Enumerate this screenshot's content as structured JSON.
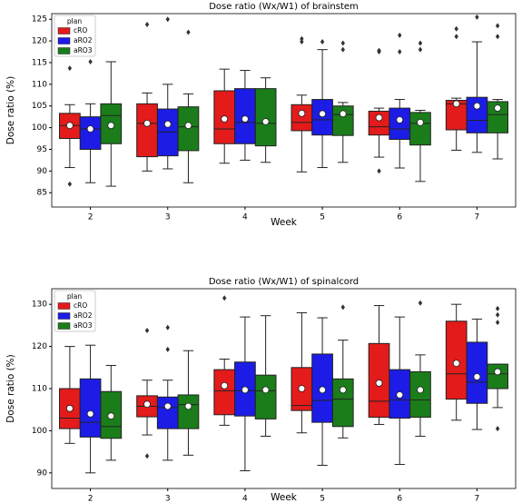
{
  "chart_data": [
    {
      "type": "box",
      "title": "Dose ratio (Wx/W1) of brainstem",
      "x_label": "Week",
      "y_label": "Dose ratio (%)",
      "categories": [
        "2",
        "3",
        "4",
        "5",
        "6",
        "7"
      ],
      "legend_title": "plan",
      "legend_position": "upper left",
      "ylim": [
        81.7,
        126.3
      ],
      "yticks": [
        85,
        90,
        95,
        100,
        105,
        110,
        115,
        120,
        125
      ],
      "series": [
        {
          "name": "cRO",
          "color": "#e31b1b",
          "values": [
            {
              "whislo": 90.8,
              "q1": 97.5,
              "med": 100.5,
              "q3": 103.3,
              "whishi": 105.3,
              "mean": 100.5,
              "fliers": [
                113.7,
                87
              ]
            },
            {
              "whislo": 90,
              "q1": 93.3,
              "med": 101,
              "q3": 105.5,
              "whishi": 108,
              "mean": 101,
              "fliers": [
                123.8
              ]
            },
            {
              "whislo": 91.8,
              "q1": 96.3,
              "med": 99.7,
              "q3": 108.5,
              "whishi": 113.5,
              "mean": 102,
              "fliers": []
            },
            {
              "whislo": 89.8,
              "q1": 99.3,
              "med": 101.2,
              "q3": 105.3,
              "whishi": 107.5,
              "mean": 103.3,
              "fliers": [
                120.5,
                119.8
              ]
            },
            {
              "whislo": 93.2,
              "q1": 98.3,
              "med": 100.2,
              "q3": 103.8,
              "whishi": 104.5,
              "mean": 102.3,
              "fliers": [
                117.8,
                117.5,
                90
              ]
            },
            {
              "whislo": 94.8,
              "q1": 99.5,
              "med": 105.5,
              "q3": 106.3,
              "whishi": 106.8,
              "mean": 105.5,
              "fliers": [
                122.8,
                121
              ]
            }
          ]
        },
        {
          "name": "aRO2",
          "color": "#1c1ce6",
          "values": [
            {
              "whislo": 87.3,
              "q1": 95,
              "med": 99.7,
              "q3": 102.5,
              "whishi": 105.5,
              "mean": 99.7,
              "fliers": [
                115.2
              ]
            },
            {
              "whislo": 90.5,
              "q1": 93.5,
              "med": 99,
              "q3": 104.3,
              "whishi": 110,
              "mean": 100.8,
              "fliers": [
                125
              ]
            },
            {
              "whislo": 92.5,
              "q1": 96.3,
              "med": 101.2,
              "q3": 109,
              "whishi": 113.2,
              "mean": 102,
              "fliers": []
            },
            {
              "whislo": 90.8,
              "q1": 98.3,
              "med": 101.8,
              "q3": 106.5,
              "whishi": 118,
              "mean": 103.2,
              "fliers": [
                119.8
              ]
            },
            {
              "whislo": 90.7,
              "q1": 97.3,
              "med": 99.7,
              "q3": 104.5,
              "whishi": 106.5,
              "mean": 101.8,
              "fliers": [
                121.3,
                117.5
              ]
            },
            {
              "whislo": 94.3,
              "q1": 98.8,
              "med": 101.7,
              "q3": 107,
              "whishi": 119.8,
              "mean": 105,
              "fliers": [
                125.5
              ]
            }
          ]
        },
        {
          "name": "aRO3",
          "color": "#1a7d1a",
          "values": [
            {
              "whislo": 86.5,
              "q1": 96.3,
              "med": 102.8,
              "q3": 105.5,
              "whishi": 115.2,
              "mean": 100.5,
              "fliers": []
            },
            {
              "whislo": 87.3,
              "q1": 94.7,
              "med": 100.2,
              "q3": 104.8,
              "whishi": 107.8,
              "mean": 100.5,
              "fliers": [
                122
              ]
            },
            {
              "whislo": 92,
              "q1": 95.8,
              "med": 101,
              "q3": 109,
              "whishi": 111.5,
              "mean": 101.4,
              "fliers": []
            },
            {
              "whislo": 92,
              "q1": 98.2,
              "med": 103,
              "q3": 105,
              "whishi": 105.8,
              "mean": 103.2,
              "fliers": [
                119.5,
                118
              ]
            },
            {
              "whislo": 87.6,
              "q1": 96,
              "med": 101,
              "q3": 103.5,
              "whishi": 104,
              "mean": 101.2,
              "fliers": [
                119.5,
                118
              ]
            },
            {
              "whislo": 92.8,
              "q1": 98.8,
              "med": 103,
              "q3": 106,
              "whishi": 106.5,
              "mean": 104.5,
              "fliers": [
                123.5,
                121
              ]
            }
          ]
        }
      ]
    },
    {
      "type": "box",
      "title": "Dose ratio (Wx/W1) of spinalcord",
      "x_label": "Week",
      "y_label": "Dose ratio (%)",
      "categories": [
        "2",
        "3",
        "4",
        "5",
        "6",
        "7"
      ],
      "legend_title": "plan",
      "legend_position": "upper left",
      "ylim": [
        86.3,
        133.7
      ],
      "yticks": [
        90,
        100,
        110,
        120,
        130
      ],
      "series": [
        {
          "name": "cRO",
          "color": "#e31b1b",
          "values": [
            {
              "whislo": 97,
              "q1": 100.5,
              "med": 103,
              "q3": 110,
              "whishi": 120,
              "mean": 105.3,
              "fliers": []
            },
            {
              "whislo": 99,
              "q1": 103.3,
              "med": 105.8,
              "q3": 108.3,
              "whishi": 112,
              "mean": 106.3,
              "fliers": [
                123.8,
                94
              ]
            },
            {
              "whislo": 101.3,
              "q1": 103.8,
              "med": 109.5,
              "q3": 114.5,
              "whishi": 117,
              "mean": 110.7,
              "fliers": [
                131.5
              ]
            },
            {
              "whislo": 99.5,
              "q1": 104.8,
              "med": 106,
              "q3": 115,
              "whishi": 128,
              "mean": 110,
              "fliers": []
            },
            {
              "whislo": 101.5,
              "q1": 103.2,
              "med": 107,
              "q3": 120.7,
              "whishi": 129.7,
              "mean": 111.3,
              "fliers": []
            },
            {
              "whislo": 102.5,
              "q1": 107.5,
              "med": 113.5,
              "q3": 126,
              "whishi": 130,
              "mean": 116,
              "fliers": []
            }
          ]
        },
        {
          "name": "aRO2",
          "color": "#1c1ce6",
          "values": [
            {
              "whislo": 90,
              "q1": 98.5,
              "med": 102,
              "q3": 112.3,
              "whishi": 120.3,
              "mean": 104,
              "fliers": []
            },
            {
              "whislo": 93,
              "q1": 100.5,
              "med": 105.5,
              "q3": 108,
              "whishi": 112,
              "mean": 105.8,
              "fliers": [
                124.5,
                119.3
              ]
            },
            {
              "whislo": 90.5,
              "q1": 103.5,
              "med": 109.5,
              "q3": 116.3,
              "whishi": 127,
              "mean": 109.7,
              "fliers": []
            },
            {
              "whislo": 91.8,
              "q1": 102,
              "med": 107.2,
              "q3": 118.2,
              "whishi": 126.8,
              "mean": 109.7,
              "fliers": []
            },
            {
              "whislo": 92,
              "q1": 103,
              "med": 107.3,
              "q3": 114.5,
              "whishi": 127,
              "mean": 108.5,
              "fliers": []
            },
            {
              "whislo": 100.3,
              "q1": 106.5,
              "med": 111.5,
              "q3": 121,
              "whishi": 126.5,
              "mean": 112.8,
              "fliers": []
            }
          ]
        },
        {
          "name": "aRO3",
          "color": "#1a7d1a",
          "values": [
            {
              "whislo": 93,
              "q1": 98.2,
              "med": 101,
              "q3": 109.3,
              "whishi": 115.5,
              "mean": 103.5,
              "fliers": []
            },
            {
              "whislo": 94.2,
              "q1": 100.5,
              "med": 106.2,
              "q3": 108.5,
              "whishi": 119,
              "mean": 105.8,
              "fliers": []
            },
            {
              "whislo": 98.7,
              "q1": 102.8,
              "med": 109.5,
              "q3": 113.2,
              "whishi": 127.3,
              "mean": 109.7,
              "fliers": []
            },
            {
              "whislo": 98.3,
              "q1": 101,
              "med": 107.5,
              "q3": 112.3,
              "whishi": 121.5,
              "mean": 109.7,
              "fliers": [
                129.3
              ]
            },
            {
              "whislo": 98.7,
              "q1": 103.2,
              "med": 107.3,
              "q3": 114,
              "whishi": 118,
              "mean": 109.7,
              "fliers": [
                130.3
              ]
            },
            {
              "whislo": 105.5,
              "q1": 110,
              "med": 113.5,
              "q3": 115.8,
              "whishi": 115.8,
              "mean": 114,
              "fliers": [
                129,
                127.5,
                125.7,
                100.5
              ]
            }
          ]
        }
      ]
    }
  ]
}
